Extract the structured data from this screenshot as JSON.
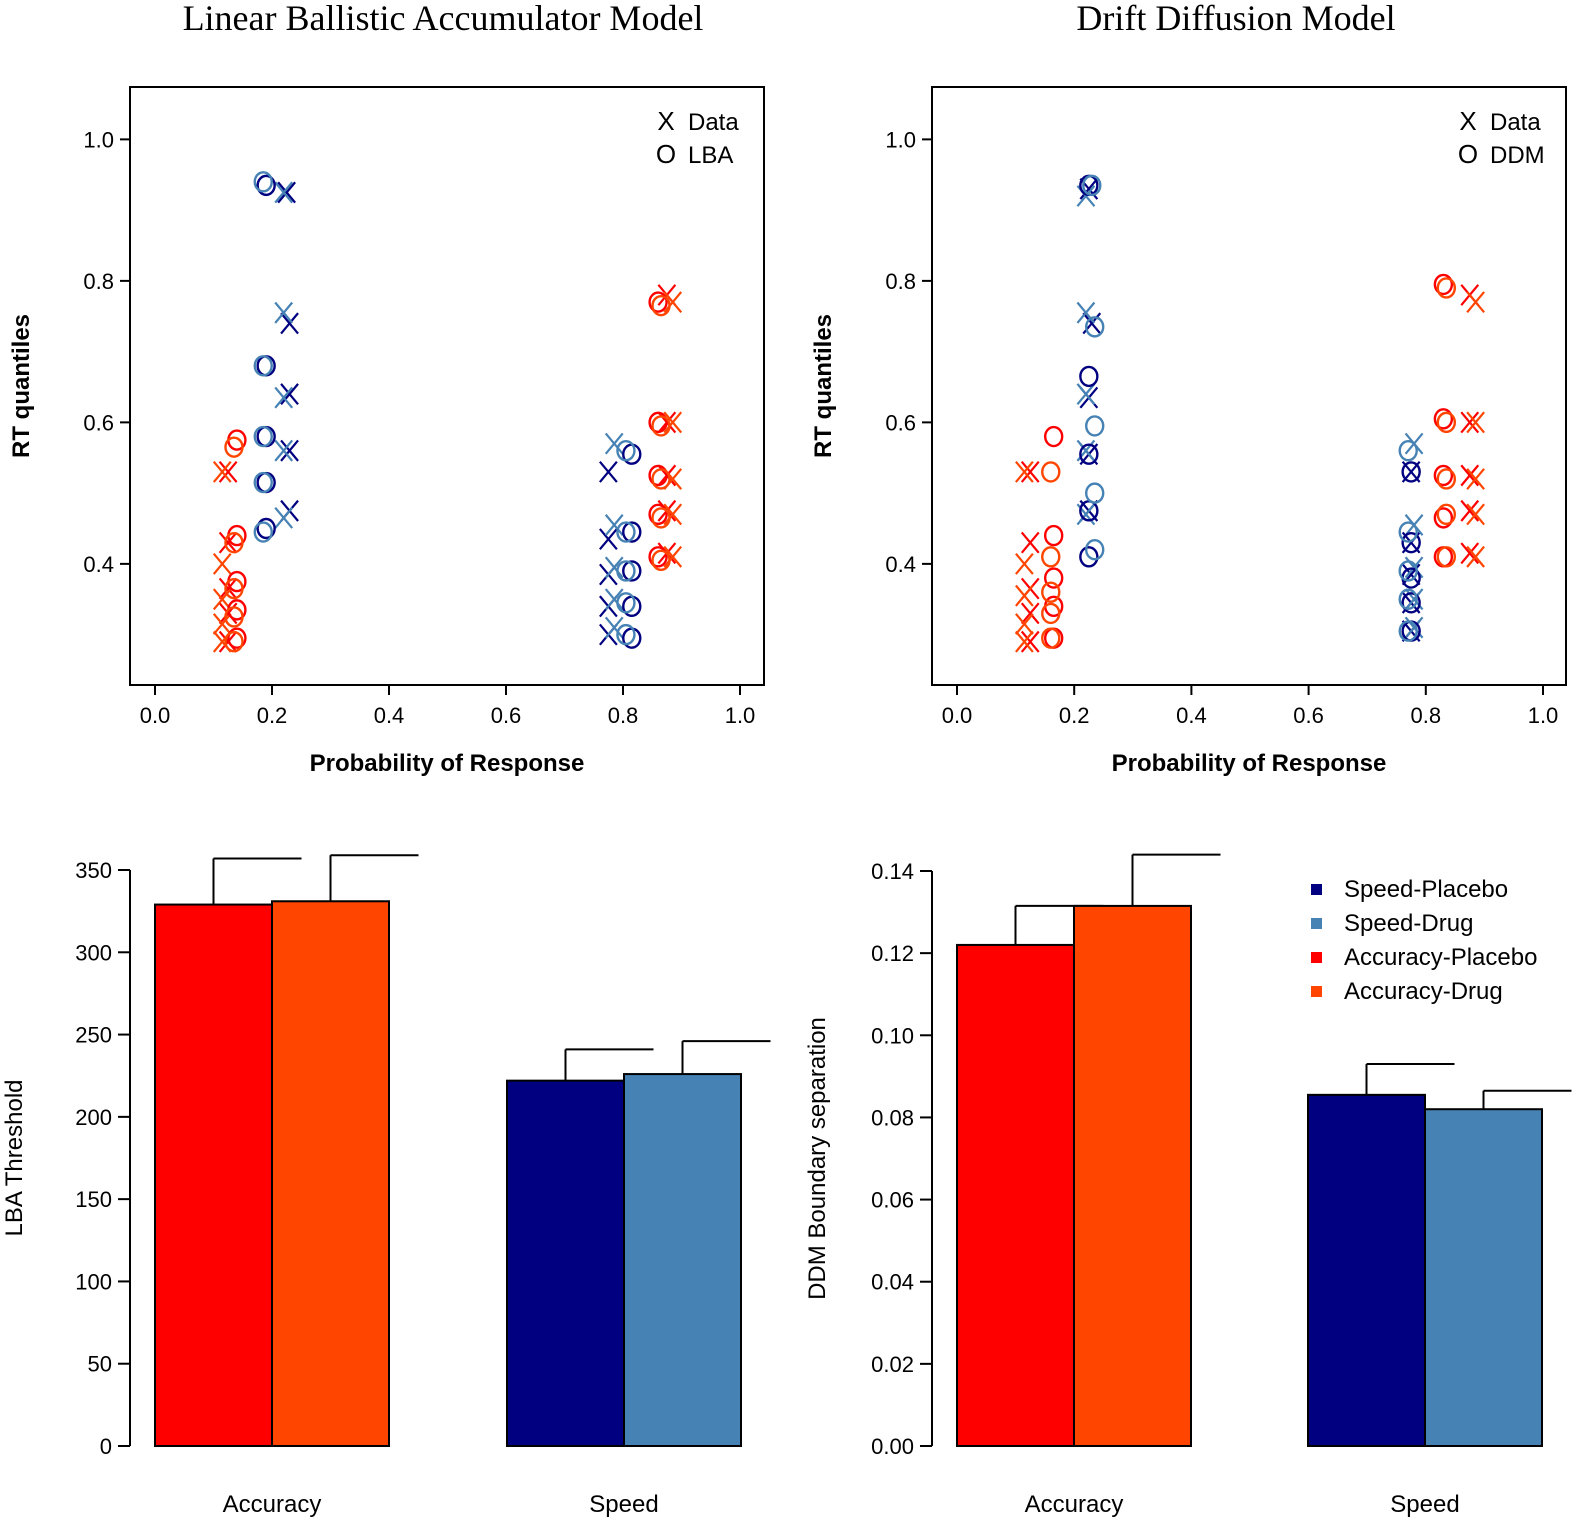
{
  "colors": {
    "speed_placebo": "#000080",
    "speed_drug": "#4682B4",
    "accuracy_placebo": "#FF0000",
    "accuracy_drug": "#FF4500"
  },
  "chart_data": [
    {
      "id": "lba-quantile",
      "type": "scatter",
      "title": "Linear Ballistic Accumulator Model",
      "xlabel": "Probability of Response",
      "ylabel": "RT quantiles",
      "xlim": [
        0.0,
        1.0
      ],
      "ylim": [
        0.25,
        1.05
      ],
      "xticks": [
        "0.0",
        "0.2",
        "0.4",
        "0.6",
        "0.8",
        "1.0"
      ],
      "yticks": [
        "0.4",
        "0.6",
        "0.8",
        "1.0"
      ],
      "legend": {
        "position": "top-right",
        "entries": [
          {
            "symbol": "X",
            "label": "Data"
          },
          {
            "symbol": "O",
            "label": "LBA"
          }
        ]
      },
      "series": [
        {
          "name": "Speed-Placebo",
          "color": "speed_placebo",
          "marker": "X",
          "points": [
            [
              0.225,
              0.925
            ],
            [
              0.23,
              0.74
            ],
            [
              0.23,
              0.64
            ],
            [
              0.23,
              0.56
            ],
            [
              0.23,
              0.475
            ],
            [
              0.775,
              0.53
            ],
            [
              0.775,
              0.435
            ],
            [
              0.775,
              0.385
            ],
            [
              0.775,
              0.34
            ],
            [
              0.775,
              0.3
            ]
          ]
        },
        {
          "name": "Speed-Drug",
          "color": "speed_drug",
          "marker": "X",
          "points": [
            [
              0.22,
              0.925
            ],
            [
              0.22,
              0.755
            ],
            [
              0.22,
              0.635
            ],
            [
              0.22,
              0.56
            ],
            [
              0.22,
              0.465
            ],
            [
              0.785,
              0.57
            ],
            [
              0.785,
              0.455
            ],
            [
              0.785,
              0.395
            ],
            [
              0.785,
              0.35
            ],
            [
              0.785,
              0.31
            ]
          ]
        },
        {
          "name": "Speed-Placebo",
          "color": "speed_placebo",
          "marker": "O",
          "points": [
            [
              0.19,
              0.935
            ],
            [
              0.19,
              0.68
            ],
            [
              0.19,
              0.58
            ],
            [
              0.19,
              0.515
            ],
            [
              0.19,
              0.45
            ],
            [
              0.815,
              0.555
            ],
            [
              0.815,
              0.445
            ],
            [
              0.815,
              0.39
            ],
            [
              0.815,
              0.34
            ],
            [
              0.815,
              0.295
            ]
          ]
        },
        {
          "name": "Speed-Drug",
          "color": "speed_drug",
          "marker": "O",
          "points": [
            [
              0.185,
              0.94
            ],
            [
              0.185,
              0.68
            ],
            [
              0.185,
              0.58
            ],
            [
              0.185,
              0.515
            ],
            [
              0.185,
              0.445
            ],
            [
              0.805,
              0.56
            ],
            [
              0.805,
              0.445
            ],
            [
              0.805,
              0.39
            ],
            [
              0.805,
              0.345
            ],
            [
              0.805,
              0.3
            ]
          ]
        },
        {
          "name": "Accuracy-Placebo",
          "color": "accuracy_placebo",
          "marker": "X",
          "points": [
            [
              0.875,
              0.78
            ],
            [
              0.875,
              0.6
            ],
            [
              0.875,
              0.525
            ],
            [
              0.875,
              0.475
            ],
            [
              0.875,
              0.415
            ],
            [
              0.125,
              0.53
            ],
            [
              0.125,
              0.43
            ],
            [
              0.125,
              0.365
            ],
            [
              0.125,
              0.33
            ],
            [
              0.125,
              0.29
            ]
          ]
        },
        {
          "name": "Accuracy-Drug",
          "color": "accuracy_drug",
          "marker": "X",
          "points": [
            [
              0.885,
              0.77
            ],
            [
              0.885,
              0.6
            ],
            [
              0.885,
              0.52
            ],
            [
              0.885,
              0.47
            ],
            [
              0.885,
              0.41
            ],
            [
              0.115,
              0.53
            ],
            [
              0.115,
              0.4
            ],
            [
              0.115,
              0.35
            ],
            [
              0.115,
              0.315
            ],
            [
              0.115,
              0.29
            ]
          ]
        },
        {
          "name": "Accuracy-Placebo",
          "color": "accuracy_placebo",
          "marker": "O",
          "points": [
            [
              0.86,
              0.77
            ],
            [
              0.86,
              0.6
            ],
            [
              0.86,
              0.525
            ],
            [
              0.86,
              0.47
            ],
            [
              0.86,
              0.41
            ],
            [
              0.14,
              0.575
            ],
            [
              0.14,
              0.44
            ],
            [
              0.14,
              0.375
            ],
            [
              0.14,
              0.335
            ],
            [
              0.14,
              0.295
            ]
          ]
        },
        {
          "name": "Accuracy-Drug",
          "color": "accuracy_drug",
          "marker": "O",
          "points": [
            [
              0.865,
              0.765
            ],
            [
              0.865,
              0.595
            ],
            [
              0.865,
              0.52
            ],
            [
              0.865,
              0.465
            ],
            [
              0.865,
              0.405
            ],
            [
              0.135,
              0.565
            ],
            [
              0.135,
              0.43
            ],
            [
              0.135,
              0.365
            ],
            [
              0.135,
              0.325
            ],
            [
              0.135,
              0.29
            ]
          ]
        }
      ]
    },
    {
      "id": "ddm-quantile",
      "type": "scatter",
      "title": "Drift Diffusion Model",
      "xlabel": "Probability of Response",
      "ylabel": "RT quantiles",
      "xlim": [
        0.0,
        1.0
      ],
      "ylim": [
        0.25,
        1.05
      ],
      "xticks": [
        "0.0",
        "0.2",
        "0.4",
        "0.6",
        "0.8",
        "1.0"
      ],
      "yticks": [
        "0.4",
        "0.6",
        "0.8",
        "1.0"
      ],
      "legend": {
        "position": "top-right",
        "entries": [
          {
            "symbol": "X",
            "label": "Data"
          },
          {
            "symbol": "O",
            "label": "DDM"
          }
        ]
      },
      "series": [
        {
          "name": "Speed-Placebo",
          "color": "speed_placebo",
          "marker": "X",
          "points": [
            [
              0.225,
              0.93
            ],
            [
              0.23,
              0.74
            ],
            [
              0.225,
              0.635
            ],
            [
              0.225,
              0.555
            ],
            [
              0.225,
              0.475
            ],
            [
              0.775,
              0.53
            ],
            [
              0.775,
              0.43
            ],
            [
              0.775,
              0.385
            ],
            [
              0.775,
              0.345
            ],
            [
              0.775,
              0.305
            ]
          ]
        },
        {
          "name": "Speed-Drug",
          "color": "speed_drug",
          "marker": "X",
          "points": [
            [
              0.22,
              0.92
            ],
            [
              0.22,
              0.755
            ],
            [
              0.22,
              0.64
            ],
            [
              0.22,
              0.56
            ],
            [
              0.22,
              0.47
            ],
            [
              0.78,
              0.57
            ],
            [
              0.78,
              0.455
            ],
            [
              0.78,
              0.395
            ],
            [
              0.78,
              0.35
            ],
            [
              0.78,
              0.31
            ]
          ]
        },
        {
          "name": "Speed-Placebo",
          "color": "speed_placebo",
          "marker": "O",
          "points": [
            [
              0.225,
              0.935
            ],
            [
              0.225,
              0.665
            ],
            [
              0.225,
              0.555
            ],
            [
              0.225,
              0.475
            ],
            [
              0.225,
              0.41
            ],
            [
              0.775,
              0.53
            ],
            [
              0.775,
              0.43
            ],
            [
              0.775,
              0.38
            ],
            [
              0.775,
              0.345
            ],
            [
              0.775,
              0.305
            ]
          ]
        },
        {
          "name": "Speed-Drug",
          "color": "speed_drug",
          "marker": "O",
          "points": [
            [
              0.23,
              0.935
            ],
            [
              0.235,
              0.735
            ],
            [
              0.235,
              0.595
            ],
            [
              0.235,
              0.5
            ],
            [
              0.235,
              0.42
            ],
            [
              0.77,
              0.56
            ],
            [
              0.77,
              0.445
            ],
            [
              0.77,
              0.39
            ],
            [
              0.77,
              0.35
            ],
            [
              0.77,
              0.305
            ]
          ]
        },
        {
          "name": "Accuracy-Placebo",
          "color": "accuracy_placebo",
          "marker": "X",
          "points": [
            [
              0.875,
              0.78
            ],
            [
              0.875,
              0.6
            ],
            [
              0.875,
              0.525
            ],
            [
              0.875,
              0.475
            ],
            [
              0.875,
              0.415
            ],
            [
              0.125,
              0.53
            ],
            [
              0.125,
              0.43
            ],
            [
              0.125,
              0.365
            ],
            [
              0.125,
              0.33
            ],
            [
              0.125,
              0.29
            ]
          ]
        },
        {
          "name": "Accuracy-Drug",
          "color": "accuracy_drug",
          "marker": "X",
          "points": [
            [
              0.885,
              0.77
            ],
            [
              0.885,
              0.6
            ],
            [
              0.885,
              0.52
            ],
            [
              0.885,
              0.47
            ],
            [
              0.885,
              0.41
            ],
            [
              0.115,
              0.53
            ],
            [
              0.115,
              0.4
            ],
            [
              0.115,
              0.355
            ],
            [
              0.115,
              0.315
            ],
            [
              0.115,
              0.29
            ]
          ]
        },
        {
          "name": "Accuracy-Placebo",
          "color": "accuracy_placebo",
          "marker": "O",
          "points": [
            [
              0.83,
              0.795
            ],
            [
              0.83,
              0.605
            ],
            [
              0.83,
              0.525
            ],
            [
              0.83,
              0.465
            ],
            [
              0.83,
              0.41
            ],
            [
              0.165,
              0.58
            ],
            [
              0.165,
              0.44
            ],
            [
              0.165,
              0.38
            ],
            [
              0.165,
              0.34
            ],
            [
              0.165,
              0.295
            ]
          ]
        },
        {
          "name": "Accuracy-Drug",
          "color": "accuracy_drug",
          "marker": "O",
          "points": [
            [
              0.835,
              0.79
            ],
            [
              0.835,
              0.6
            ],
            [
              0.835,
              0.52
            ],
            [
              0.835,
              0.47
            ],
            [
              0.835,
              0.41
            ],
            [
              0.16,
              0.53
            ],
            [
              0.16,
              0.41
            ],
            [
              0.16,
              0.36
            ],
            [
              0.16,
              0.33
            ],
            [
              0.16,
              0.295
            ]
          ]
        }
      ]
    },
    {
      "id": "lba-bar",
      "type": "bar",
      "ylabel": "LBA Threshold",
      "ylim": [
        0,
        350
      ],
      "yticks": [
        "0",
        "50",
        "100",
        "150",
        "200",
        "250",
        "300",
        "350"
      ],
      "categories": [
        "Accuracy",
        "Speed"
      ],
      "bars": [
        {
          "name": "Accuracy-Placebo",
          "category": "Accuracy",
          "color": "accuracy_placebo",
          "value": 329,
          "error": 28
        },
        {
          "name": "Accuracy-Drug",
          "category": "Accuracy",
          "color": "accuracy_drug",
          "value": 331,
          "error": 28
        },
        {
          "name": "Speed-Placebo",
          "category": "Speed",
          "color": "speed_placebo",
          "value": 222,
          "error": 19
        },
        {
          "name": "Speed-Drug",
          "category": "Speed",
          "color": "speed_drug",
          "value": 226,
          "error": 20
        }
      ]
    },
    {
      "id": "ddm-bar",
      "type": "bar",
      "ylabel": "DDM Boundary separation",
      "ylim": [
        0,
        0.14
      ],
      "yticks": [
        "0.00",
        "0.02",
        "0.04",
        "0.06",
        "0.08",
        "0.10",
        "0.12",
        "0.14"
      ],
      "categories": [
        "Accuracy",
        "Speed"
      ],
      "legend": {
        "position": "top-right",
        "entries": [
          {
            "label": "Speed-Placebo",
            "color": "speed_placebo"
          },
          {
            "label": "Speed-Drug",
            "color": "speed_drug"
          },
          {
            "label": "Accuracy-Placebo",
            "color": "accuracy_placebo"
          },
          {
            "label": "Accuracy-Drug",
            "color": "accuracy_drug"
          }
        ]
      },
      "bars": [
        {
          "name": "Accuracy-Placebo",
          "category": "Accuracy",
          "color": "accuracy_placebo",
          "value": 0.122,
          "error": 0.0095
        },
        {
          "name": "Accuracy-Drug",
          "category": "Accuracy",
          "color": "accuracy_drug",
          "value": 0.1315,
          "error": 0.0125
        },
        {
          "name": "Speed-Placebo",
          "category": "Speed",
          "color": "speed_placebo",
          "value": 0.0855,
          "error": 0.0075
        },
        {
          "name": "Speed-Drug",
          "category": "Speed",
          "color": "speed_drug",
          "value": 0.082,
          "error": 0.0045
        }
      ]
    }
  ]
}
